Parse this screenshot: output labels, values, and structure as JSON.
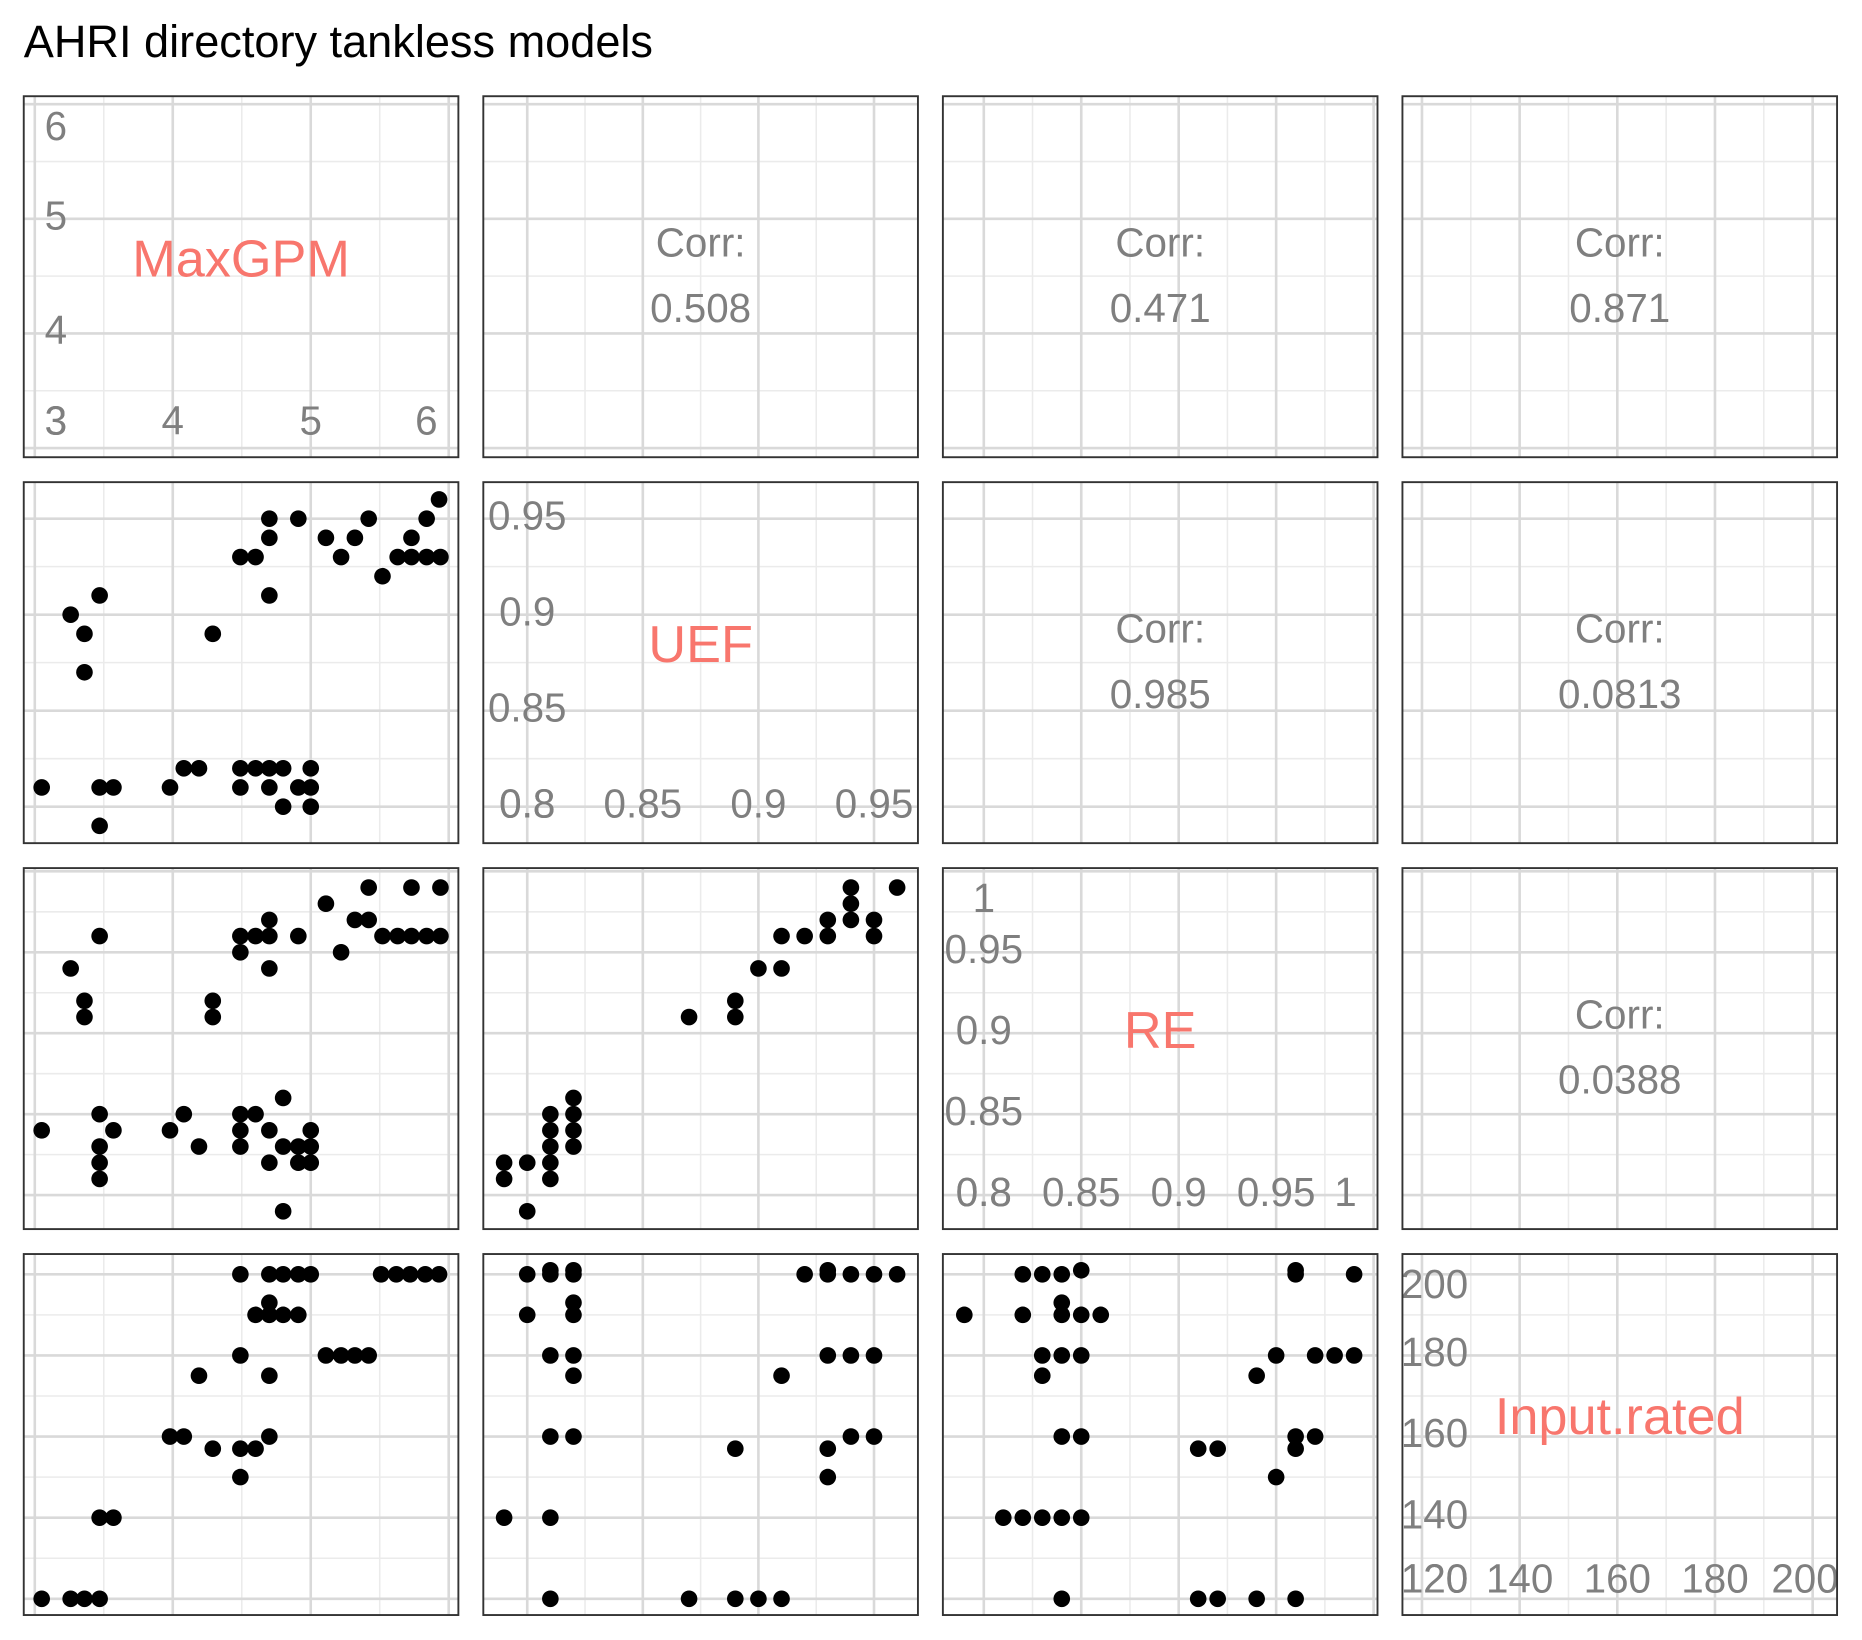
{
  "chart_data": {
    "type": "pairs",
    "title": "AHRI directory tankless models",
    "grid": true,
    "minor_grid": true,
    "point_color": "#000000",
    "label_color": "#F8766D",
    "variables": [
      {
        "name": "MaxGPM",
        "lim": [
          2.92,
          6.07
        ],
        "ticks": [
          3,
          4,
          5,
          6
        ]
      },
      {
        "name": "UEF",
        "lim": [
          0.781,
          0.969
        ],
        "ticks": [
          0.8,
          0.85,
          0.9,
          0.95
        ]
      },
      {
        "name": "RE",
        "lim": [
          0.779,
          1.002
        ],
        "ticks": [
          0.8,
          0.85,
          0.9,
          0.95,
          1
        ]
      },
      {
        "name": "Input.rated",
        "lim": [
          116,
          205
        ],
        "ticks": [
          120,
          140,
          160,
          180,
          200
        ]
      }
    ],
    "panels": [
      {
        "type": "label"
      },
      {
        "type": "corr",
        "label": "Corr:",
        "value": 0.508
      },
      {
        "type": "corr",
        "label": "Corr:",
        "value": 0.471
      },
      {
        "type": "corr",
        "label": "Corr:",
        "value": 0.871
      },
      {
        "type": "scatter",
        "x": [
          5.93,
          5.84,
          5.73,
          5.42,
          5.32,
          5.22,
          5.11,
          5.52,
          5.63,
          5.73,
          5.84,
          5.94,
          4.91,
          4.7,
          4.7,
          4.49,
          4.6,
          4.7,
          3.47,
          3.26,
          3.36,
          4.29,
          3.36,
          3.05,
          3.47,
          3.57,
          3.47,
          3.98,
          4.08,
          4.19,
          4.49,
          4.6,
          4.7,
          4.8,
          5,
          4.49,
          4.7,
          4.91,
          5,
          4.8,
          5
        ],
        "y": [
          0.96,
          0.95,
          0.94,
          0.95,
          0.94,
          0.93,
          0.94,
          0.92,
          0.93,
          0.93,
          0.93,
          0.93,
          0.95,
          0.95,
          0.94,
          0.93,
          0.93,
          0.91,
          0.91,
          0.9,
          0.89,
          0.89,
          0.87,
          0.81,
          0.81,
          0.81,
          0.79,
          0.81,
          0.82,
          0.82,
          0.82,
          0.82,
          0.82,
          0.82,
          0.82,
          0.81,
          0.81,
          0.81,
          0.81,
          0.8,
          0.8
        ]
      },
      {
        "type": "label"
      },
      {
        "type": "corr",
        "label": "Corr:",
        "value": 0.985
      },
      {
        "type": "corr",
        "label": "Corr:",
        "value": 0.0813
      },
      {
        "type": "scatter",
        "x": [
          5.42,
          5.73,
          5.94,
          5.11,
          5.32,
          5.42,
          5.52,
          5.63,
          5.73,
          5.84,
          5.94,
          4.7,
          4.49,
          4.6,
          4.91,
          5.22,
          4.49,
          4.7,
          3.47,
          3.26,
          4.7,
          3.36,
          4.29,
          3.36,
          4.29,
          3.05,
          3.47,
          3.57,
          3.98,
          4.08,
          4.19,
          4.49,
          4.6,
          4.49,
          4.7,
          4.8,
          5,
          4.49,
          4.8,
          4.91,
          5,
          3.47,
          3.47,
          3.47,
          4.7,
          4.91,
          5,
          4.8
        ],
        "y": [
          0.99,
          0.99,
          0.99,
          0.98,
          0.97,
          0.97,
          0.96,
          0.96,
          0.96,
          0.96,
          0.96,
          0.97,
          0.96,
          0.96,
          0.96,
          0.95,
          0.95,
          0.96,
          0.96,
          0.94,
          0.94,
          0.92,
          0.92,
          0.91,
          0.91,
          0.84,
          0.85,
          0.84,
          0.84,
          0.85,
          0.83,
          0.85,
          0.85,
          0.84,
          0.84,
          0.86,
          0.84,
          0.83,
          0.83,
          0.83,
          0.83,
          0.83,
          0.82,
          0.81,
          0.82,
          0.82,
          0.82,
          0.79
        ]
      },
      {
        "type": "scatter",
        "x": [
          0.96,
          0.94,
          0.94,
          0.94,
          0.95,
          0.95,
          0.93,
          0.93,
          0.92,
          0.91,
          0.91,
          0.9,
          0.89,
          0.89,
          0.87,
          0.82,
          0.82,
          0.82,
          0.82,
          0.81,
          0.81,
          0.81,
          0.81,
          0.81,
          0.8,
          0.79,
          0.79,
          0.8
        ],
        "y": [
          0.99,
          0.99,
          0.98,
          0.97,
          0.97,
          0.96,
          0.97,
          0.96,
          0.96,
          0.96,
          0.94,
          0.94,
          0.92,
          0.91,
          0.91,
          0.86,
          0.85,
          0.84,
          0.83,
          0.85,
          0.84,
          0.83,
          0.82,
          0.81,
          0.82,
          0.82,
          0.81,
          0.79
        ]
      },
      {
        "type": "label"
      },
      {
        "type": "corr",
        "label": "Corr:",
        "value": 0.0388
      },
      {
        "type": "scatter",
        "x": [
          4.49,
          4.7,
          4.8,
          4.91,
          5,
          5.51,
          5.62,
          5.72,
          5.83,
          5.93,
          4.6,
          4.7,
          4.8,
          4.91,
          4.7,
          5.11,
          5.22,
          5.32,
          5.42,
          4.49,
          4.7,
          4.19,
          3.98,
          4.08,
          4.7,
          4.29,
          4.49,
          4.6,
          4.49,
          3.47,
          3.57,
          3.05,
          3.26,
          3.36,
          3.47
        ],
        "y": [
          200,
          200,
          200,
          200,
          200,
          200,
          200,
          200,
          200,
          200,
          190,
          190,
          190,
          190,
          193,
          180,
          180,
          180,
          180,
          180,
          175,
          175,
          160,
          160,
          160,
          157,
          157,
          157,
          150,
          140,
          140,
          120,
          120,
          120,
          120
        ]
      },
      {
        "type": "scatter",
        "x": [
          0.8,
          0.81,
          0.82,
          0.81,
          0.82,
          0.92,
          0.93,
          0.94,
          0.95,
          0.96,
          0.93,
          0.8,
          0.82,
          0.82,
          0.81,
          0.82,
          0.93,
          0.94,
          0.95,
          0.82,
          0.91,
          0.81,
          0.82,
          0.94,
          0.95,
          0.89,
          0.93,
          0.93,
          0.79,
          0.81,
          0.81,
          0.87,
          0.89,
          0.9,
          0.91
        ],
        "y": [
          200,
          200,
          200,
          201,
          201,
          200,
          200,
          200,
          200,
          200,
          201,
          190,
          193,
          190,
          180,
          180,
          180,
          180,
          180,
          175,
          175,
          160,
          160,
          160,
          160,
          157,
          157,
          150,
          140,
          140,
          120,
          120,
          120,
          120,
          120
        ]
      },
      {
        "type": "scatter",
        "x": [
          0.82,
          0.83,
          0.84,
          0.85,
          0.96,
          0.96,
          0.99,
          0.79,
          0.82,
          0.84,
          0.84,
          0.85,
          0.86,
          0.83,
          0.84,
          0.85,
          0.95,
          0.97,
          0.98,
          0.99,
          0.83,
          0.94,
          0.84,
          0.85,
          0.96,
          0.97,
          0.91,
          0.92,
          0.96,
          0.95,
          0.81,
          0.82,
          0.83,
          0.84,
          0.85,
          0.84,
          0.91,
          0.92,
          0.94,
          0.96
        ],
        "y": [
          200,
          200,
          200,
          201,
          201,
          200,
          200,
          190,
          190,
          193,
          190,
          190,
          190,
          180,
          180,
          180,
          180,
          180,
          180,
          180,
          175,
          175,
          160,
          160,
          160,
          160,
          157,
          157,
          157,
          150,
          140,
          140,
          140,
          140,
          140,
          120,
          120,
          120,
          120,
          120
        ]
      },
      {
        "type": "label"
      }
    ]
  }
}
